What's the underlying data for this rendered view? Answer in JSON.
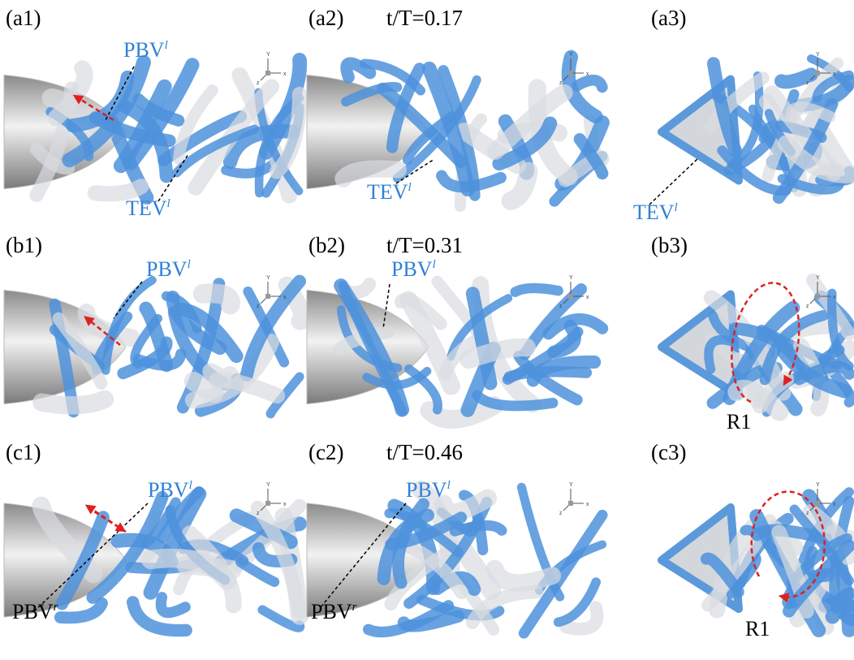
{
  "triad": {
    "y": "Y",
    "x": "x",
    "z": "z"
  },
  "panels": [
    {
      "label": "(a1)",
      "annotations": [
        {
          "base": "PBV",
          "sup": "l",
          "color": "#2f80d6"
        },
        {
          "base": "TEV",
          "sup": "l",
          "color": "#2f80d6"
        }
      ]
    },
    {
      "label": "(a2)",
      "time": "t/T=0.17",
      "annotations": [
        {
          "base": "TEV",
          "sup": "l",
          "color": "#2f80d6"
        }
      ]
    },
    {
      "label": "(a3)",
      "annotations": [
        {
          "base": "TEV",
          "sup": "l",
          "color": "#2f80d6"
        }
      ]
    },
    {
      "label": "(b1)",
      "annotations": [
        {
          "base": "PBV",
          "sup": "l",
          "color": "#2f80d6"
        }
      ]
    },
    {
      "label": "(b2)",
      "time": "t/T=0.31",
      "annotations": [
        {
          "base": "PBV",
          "sup": "l",
          "color": "#2f80d6"
        }
      ]
    },
    {
      "label": "(b3)",
      "annotations": [
        {
          "base": "R1",
          "color": "#000000"
        }
      ]
    },
    {
      "label": "(c1)",
      "annotations": [
        {
          "base": "PBV",
          "sup": "l",
          "color": "#2f80d6"
        },
        {
          "base": "PBV",
          "sup": "r",
          "color": "#000000"
        }
      ]
    },
    {
      "label": "(c2)",
      "time": "t/T=0.46",
      "annotations": [
        {
          "base": "PBV",
          "sup": "l",
          "color": "#2f80d6"
        },
        {
          "base": "PBV",
          "sup": "r",
          "color": "#000000"
        }
      ]
    },
    {
      "label": "(c3)",
      "annotations": [
        {
          "base": "R1",
          "color": "#000000"
        }
      ]
    }
  ]
}
